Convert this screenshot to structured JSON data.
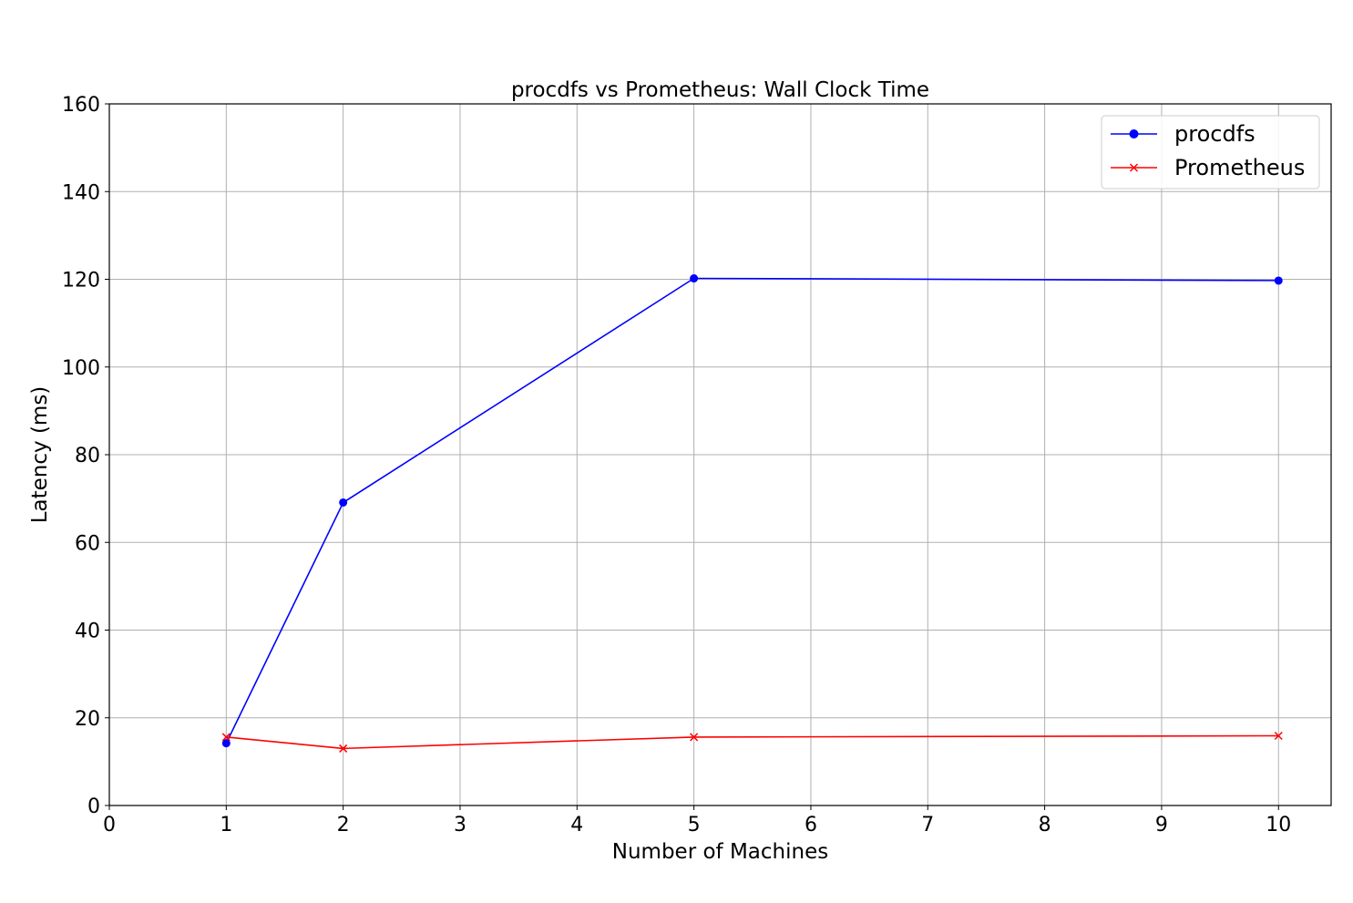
{
  "chart_data": {
    "type": "line",
    "title": "procdfs vs Prometheus: Wall Clock Time",
    "xlabel": "Number of Machines",
    "ylabel": "Latency (ms)",
    "xlim": [
      0,
      10.45
    ],
    "ylim": [
      0,
      160
    ],
    "xticks": [
      0,
      1,
      2,
      3,
      4,
      5,
      6,
      7,
      8,
      9,
      10
    ],
    "yticks": [
      0,
      20,
      40,
      60,
      80,
      100,
      120,
      140,
      160
    ],
    "grid": true,
    "legend_position": "top-right",
    "x": [
      1,
      2,
      5,
      10
    ],
    "series": [
      {
        "name": "procdfs",
        "values": [
          14.2,
          69.1,
          120.2,
          119.7
        ],
        "color": "#0000ff",
        "marker": "circle"
      },
      {
        "name": "Prometheus",
        "values": [
          15.6,
          13.0,
          15.6,
          15.9
        ],
        "color": "#ff0000",
        "marker": "x"
      }
    ]
  }
}
